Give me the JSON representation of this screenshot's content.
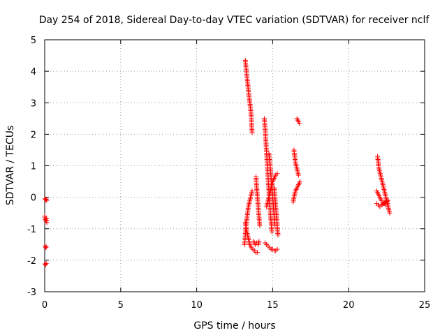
{
  "chart_data": {
    "type": "scatter",
    "title": "Day 254 of 2018, Sidereal Day-to-day VTEC variation (SDTVAR) for receiver nclf",
    "xlabel": "GPS time / hours",
    "ylabel": "SDTVAR / TECUs",
    "xlim": [
      0,
      25
    ],
    "ylim": [
      -3,
      5
    ],
    "x_ticks": [
      0,
      5,
      10,
      15,
      20,
      25
    ],
    "y_ticks": [
      -3,
      -2,
      -1,
      0,
      1,
      2,
      3,
      4,
      5
    ],
    "x_tick_labels": [
      "0",
      "5",
      "10",
      "15",
      "20",
      "25"
    ],
    "y_tick_labels": [
      "-3",
      "-2",
      "-1",
      "0",
      "1",
      "2",
      "3",
      "4",
      "5"
    ],
    "grid": true,
    "marker": "+",
    "color": "#ff0000",
    "series": [
      {
        "name": "SDTVAR",
        "segments": [
          [
            [
              0.02,
              -0.05
            ],
            [
              0.06,
              -0.08
            ],
            [
              0.1,
              -0.06
            ],
            [
              0.13,
              -0.1
            ]
          ],
          [
            [
              0.0,
              -0.6
            ],
            [
              0.04,
              -0.7
            ],
            [
              0.08,
              -0.75
            ],
            [
              0.11,
              -0.68
            ],
            [
              0.14,
              -0.8
            ]
          ],
          [
            [
              0.02,
              -1.55
            ],
            [
              0.06,
              -1.6
            ],
            [
              0.1,
              -1.58
            ]
          ],
          [
            [
              0.02,
              -2.12
            ],
            [
              0.06,
              -2.15
            ],
            [
              0.1,
              -2.1
            ]
          ],
          [
            [
              13.2,
              4.35
            ],
            [
              13.25,
              4.1
            ],
            [
              13.3,
              3.85
            ],
            [
              13.35,
              3.65
            ],
            [
              13.4,
              3.4
            ],
            [
              13.45,
              3.2
            ],
            [
              13.5,
              3.0
            ],
            [
              13.55,
              2.8
            ],
            [
              13.6,
              2.5
            ],
            [
              13.62,
              2.25
            ],
            [
              13.65,
              2.05
            ]
          ],
          [
            [
              13.15,
              -1.5
            ],
            [
              13.2,
              -1.2
            ],
            [
              13.25,
              -0.9
            ],
            [
              13.3,
              -0.7
            ],
            [
              13.35,
              -0.5
            ],
            [
              13.4,
              -0.3
            ],
            [
              13.5,
              -0.1
            ],
            [
              13.6,
              0.1
            ],
            [
              13.65,
              0.2
            ]
          ],
          [
            [
              13.2,
              -0.8
            ],
            [
              13.3,
              -1.1
            ],
            [
              13.4,
              -1.3
            ],
            [
              13.5,
              -1.5
            ],
            [
              13.6,
              -1.6
            ],
            [
              13.7,
              -1.65
            ],
            [
              13.8,
              -1.7
            ],
            [
              13.9,
              -1.75
            ],
            [
              14.0,
              -1.75
            ]
          ],
          [
            [
              13.9,
              0.65
            ],
            [
              13.95,
              0.3
            ],
            [
              14.0,
              0.0
            ],
            [
              14.05,
              -0.3
            ],
            [
              14.1,
              -0.6
            ],
            [
              14.15,
              -0.9
            ]
          ],
          [
            [
              13.75,
              -1.4
            ],
            [
              13.85,
              -1.5
            ],
            [
              13.95,
              -1.45
            ],
            [
              14.05,
              -1.5
            ],
            [
              14.1,
              -1.4
            ]
          ],
          [
            [
              14.45,
              2.5
            ],
            [
              14.5,
              2.2
            ],
            [
              14.55,
              1.8
            ],
            [
              14.6,
              1.4
            ],
            [
              14.65,
              1.0
            ],
            [
              14.7,
              0.6
            ],
            [
              14.75,
              0.2
            ],
            [
              14.8,
              -0.2
            ],
            [
              14.85,
              -0.5
            ],
            [
              14.9,
              -0.8
            ],
            [
              14.95,
              -1.1
            ]
          ],
          [
            [
              14.5,
              -1.45
            ],
            [
              14.6,
              -1.5
            ],
            [
              14.7,
              -1.55
            ],
            [
              14.8,
              -1.6
            ],
            [
              14.9,
              -1.65
            ],
            [
              15.0,
              -1.65
            ],
            [
              15.1,
              -1.7
            ],
            [
              15.2,
              -1.7
            ],
            [
              15.3,
              -1.65
            ]
          ],
          [
            [
              14.75,
              1.4
            ],
            [
              14.8,
              1.2
            ],
            [
              14.85,
              0.9
            ],
            [
              14.9,
              0.6
            ],
            [
              14.95,
              0.3
            ],
            [
              15.0,
              0.0
            ],
            [
              15.05,
              -0.3
            ],
            [
              15.1,
              -0.6
            ],
            [
              15.15,
              -0.9
            ]
          ],
          [
            [
              14.6,
              -0.3
            ],
            [
              14.7,
              -0.1
            ],
            [
              14.8,
              0.1
            ],
            [
              14.9,
              0.3
            ],
            [
              15.0,
              0.5
            ],
            [
              15.1,
              0.6
            ],
            [
              15.2,
              0.7
            ],
            [
              15.3,
              0.75
            ]
          ],
          [
            [
              15.1,
              0.3
            ],
            [
              15.15,
              0.0
            ],
            [
              15.2,
              -0.3
            ],
            [
              15.25,
              -0.6
            ],
            [
              15.3,
              -0.9
            ],
            [
              15.35,
              -1.2
            ]
          ],
          [
            [
              16.4,
              1.5
            ],
            [
              16.45,
              1.3
            ],
            [
              16.5,
              1.1
            ],
            [
              16.55,
              1.0
            ],
            [
              16.6,
              0.9
            ],
            [
              16.65,
              0.8
            ],
            [
              16.7,
              0.7
            ]
          ],
          [
            [
              16.35,
              -0.15
            ],
            [
              16.4,
              0.0
            ],
            [
              16.45,
              0.1
            ],
            [
              16.5,
              0.2
            ],
            [
              16.6,
              0.3
            ],
            [
              16.7,
              0.4
            ],
            [
              16.8,
              0.5
            ]
          ],
          [
            [
              16.6,
              2.5
            ],
            [
              16.65,
              2.45
            ],
            [
              16.7,
              2.4
            ],
            [
              16.75,
              2.35
            ]
          ],
          [
            [
              21.9,
              1.3
            ],
            [
              21.95,
              1.1
            ],
            [
              22.0,
              0.9
            ],
            [
              22.1,
              0.7
            ],
            [
              22.2,
              0.5
            ],
            [
              22.3,
              0.3
            ],
            [
              22.4,
              0.1
            ],
            [
              22.5,
              -0.1
            ],
            [
              22.6,
              -0.3
            ],
            [
              22.7,
              -0.5
            ]
          ],
          [
            [
              21.85,
              0.2
            ],
            [
              21.95,
              0.1
            ],
            [
              22.05,
              0.0
            ],
            [
              22.15,
              -0.1
            ],
            [
              22.25,
              -0.15
            ],
            [
              22.35,
              -0.2
            ],
            [
              22.45,
              -0.25
            ]
          ],
          [
            [
              21.85,
              -0.2
            ],
            [
              21.95,
              -0.25
            ],
            [
              22.05,
              -0.3
            ],
            [
              22.15,
              -0.25
            ],
            [
              22.3,
              -0.2
            ],
            [
              22.45,
              -0.15
            ],
            [
              22.6,
              -0.1
            ]
          ]
        ]
      }
    ]
  }
}
